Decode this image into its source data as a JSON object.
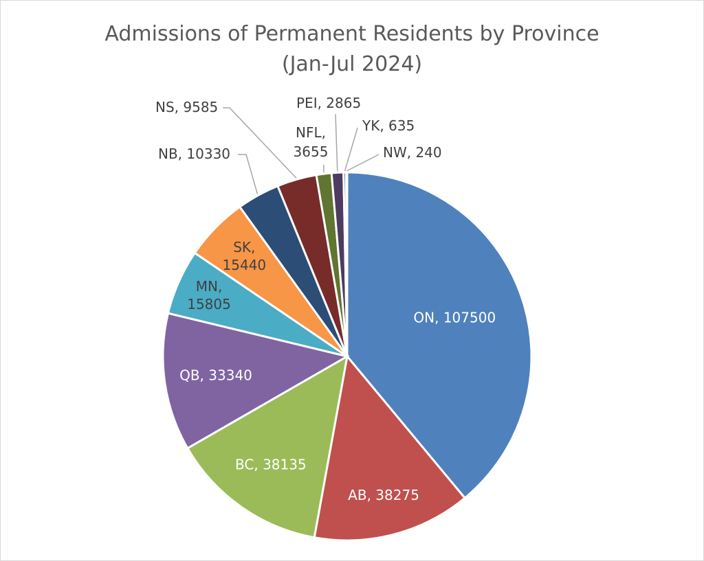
{
  "chart_data": {
    "type": "pie",
    "title": "Admissions of Permanent Residents by Province",
    "subtitle": "(Jan-Jul 2024)",
    "legend": "none",
    "categories": [
      "ON",
      "AB",
      "BC",
      "QB",
      "MN",
      "SK",
      "NB",
      "NS",
      "NFL",
      "PEI",
      "YK",
      "NW"
    ],
    "values": [
      107500,
      38275,
      38135,
      33340,
      15805,
      15440,
      10330,
      9585,
      3655,
      2865,
      635,
      240
    ],
    "labels": [
      "ON, 107500",
      "AB, 38275",
      "BC, 38135",
      "QB, 33340",
      "MN,",
      "SK,",
      "NB, 10330",
      "NS, 9585",
      "NFL,",
      "PEI, 2865",
      "YK, 635",
      "NW, 240"
    ],
    "labels_line2": [
      "",
      "",
      "",
      "",
      "15805",
      "15440",
      "",
      "",
      "3655",
      "",
      "",
      ""
    ],
    "colors": [
      "#4F81BD",
      "#C0504D",
      "#9BBB59",
      "#8064A2",
      "#4BACC6",
      "#F79646",
      "#2C4D75",
      "#772C2A",
      "#5F7530",
      "#4D3B62",
      "#276A7C",
      "#B65708"
    ]
  }
}
